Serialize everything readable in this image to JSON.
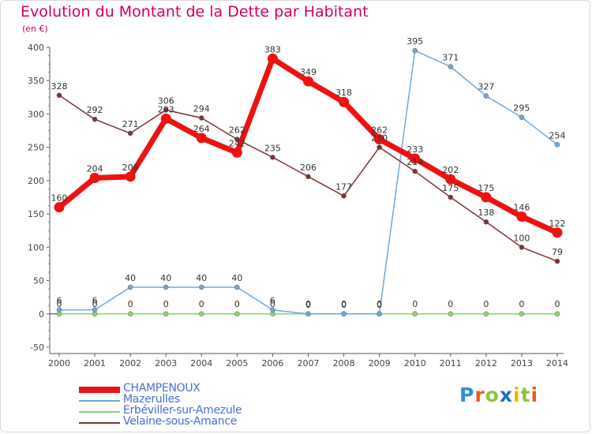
{
  "header": {
    "title": "Evolution du Montant de la Dette par Habitant",
    "unit": "(en €)"
  },
  "brand": {
    "letters": [
      {
        "ch": "P",
        "color": "#2f8fd0"
      },
      {
        "ch": "r",
        "color": "#e85a22"
      },
      {
        "ch": "o",
        "color": "#8fc33a"
      },
      {
        "ch": "x",
        "color": "#1f6fc0"
      },
      {
        "ch": "i",
        "color": "#f0b400"
      },
      {
        "ch": "t",
        "color": "#8fc33a"
      },
      {
        "ch": "i",
        "color": "#e85a22"
      }
    ]
  },
  "chart_data": {
    "type": "line",
    "title": "Evolution du Montant de la Dette par Habitant",
    "ylabel": "(en €)",
    "xlabel": "",
    "x": [
      2000,
      2001,
      2002,
      2003,
      2004,
      2005,
      2006,
      2007,
      2008,
      2009,
      2010,
      2011,
      2012,
      2013,
      2014
    ],
    "ylim": [
      -50,
      400
    ],
    "yticks": [
      -50,
      0,
      50,
      100,
      150,
      200,
      250,
      300,
      350,
      400
    ],
    "grid": false,
    "legend_position": "bottom-left",
    "series": [
      {
        "name": "CHAMPENOUX",
        "color": "#ee1111",
        "width": 7,
        "values": [
          160,
          204,
          206,
          293,
          264,
          242,
          383,
          349,
          318,
          262,
          233,
          202,
          175,
          146,
          122
        ],
        "labels": [
          "160",
          "204",
          "206",
          "293",
          "264",
          "242",
          "383",
          "349",
          "318",
          "262",
          "233",
          "202",
          "175",
          "146",
          "122"
        ]
      },
      {
        "name": "Mazerulles",
        "color": "#6ea8d8",
        "width": 1.5,
        "values": [
          6,
          6,
          40,
          40,
          40,
          40,
          6,
          0,
          0,
          0,
          395,
          371,
          327,
          295,
          254
        ],
        "labels": [
          "6",
          "6",
          "40",
          "40",
          "40",
          "40",
          "6",
          "0",
          "0",
          "0",
          "395",
          "371",
          "327",
          "295",
          "254"
        ]
      },
      {
        "name": "Erbéviller-sur-Amezule",
        "color": "#8fd46a",
        "width": 1.5,
        "values": [
          0,
          0,
          0,
          0,
          0,
          0,
          0,
          0,
          0,
          0,
          0,
          0,
          0,
          0,
          0
        ],
        "labels": [
          "0",
          "0",
          "0",
          "0",
          "0",
          "0",
          "0",
          "0",
          "0",
          "0",
          "0",
          "0",
          "0",
          "0",
          "0"
        ]
      },
      {
        "name": "Velaine-sous-Amance",
        "color": "#7a3535",
        "width": 1.5,
        "values": [
          328,
          292,
          271,
          306,
          294,
          262,
          235,
          206,
          177,
          250,
          214,
          175,
          138,
          100,
          79
        ],
        "labels": [
          "328",
          "292",
          "271",
          "306",
          "294",
          "262",
          "235",
          "206",
          "177",
          "250",
          "214",
          "175",
          "138",
          "100",
          "79"
        ]
      }
    ]
  }
}
